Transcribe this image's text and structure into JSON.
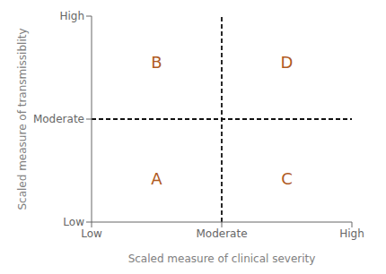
{
  "chart_data": {
    "type": "quadrant",
    "x_label": "Scaled measure of clinical severity",
    "y_label": "Scaled measure of transmissiblity",
    "xlim": [
      0,
      2
    ],
    "ylim": [
      0,
      2
    ],
    "xticks": [
      {
        "value": 0,
        "label": "Low"
      },
      {
        "value": 1,
        "label": "Moderate"
      },
      {
        "value": 2,
        "label": "High"
      }
    ],
    "yticks": [
      {
        "value": 0,
        "label": "Low"
      },
      {
        "value": 1,
        "label": "Moderate"
      },
      {
        "value": 2,
        "label": "High"
      }
    ],
    "dividers": {
      "x": 1,
      "y": 1,
      "color": "#111111"
    },
    "annotations": [
      {
        "text": "A",
        "x": 0.5,
        "y": 0.42,
        "color": "#b05a1e"
      },
      {
        "text": "B",
        "x": 0.5,
        "y": 1.55,
        "color": "#b05a1e"
      },
      {
        "text": "C",
        "x": 1.5,
        "y": 0.42,
        "color": "#b05a1e"
      },
      {
        "text": "D",
        "x": 1.5,
        "y": 1.55,
        "color": "#b05a1e"
      }
    ],
    "grid": false
  }
}
